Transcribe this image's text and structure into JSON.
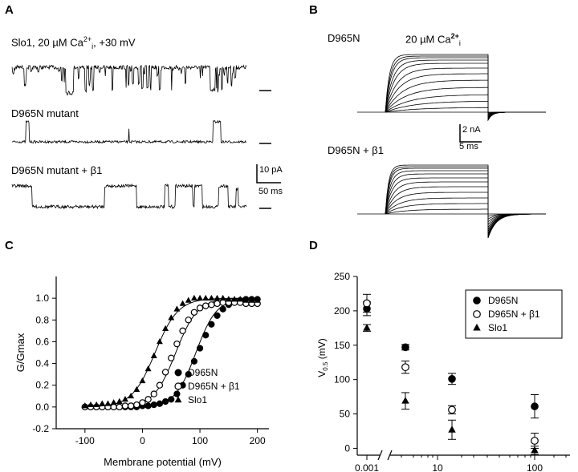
{
  "panels": {
    "A": {
      "letter": "A",
      "trace1_label": "Slo1,  20 µM Ca",
      "trace1_sup": "2+",
      "trace1_sub": "i",
      "trace1_suffix": ", +30 mV",
      "trace2_label": "D965N mutant",
      "trace3_label": "D965N mutant + β1",
      "scale_current": "10 pA",
      "scale_time": "50 ms"
    },
    "B": {
      "letter": "B",
      "top_label": "D965N",
      "ca_label": "20 µM Ca",
      "ca_sup": "2+",
      "ca_sub": "i",
      "bottom_label": "D965N + β1",
      "scale_current": "2 nA",
      "scale_time": "5 ms"
    }
  },
  "chart_data": [
    {
      "panel": "C",
      "type": "scatter",
      "ylabel": "G/Gmax",
      "xlabel": "Membrane potential (mV)",
      "xlim": [
        -150,
        220
      ],
      "ylim": [
        -0.2,
        1.2
      ],
      "xticks": [
        -100,
        0,
        100,
        200
      ],
      "yticks": [
        -0.2,
        0.0,
        0.2,
        0.4,
        0.6,
        0.8,
        1.0
      ],
      "legend_position": "lower-right",
      "series": [
        {
          "name": "D965N",
          "marker": "filled-circle",
          "v_half": 93,
          "slope": 18,
          "x": [
            -100,
            -90,
            -80,
            -70,
            -60,
            -50,
            -40,
            -30,
            -20,
            -10,
            0,
            10,
            20,
            30,
            40,
            50,
            60,
            70,
            80,
            90,
            100,
            110,
            120,
            130,
            140,
            150,
            160,
            170,
            180,
            190,
            200
          ],
          "y": [
            0.0,
            0.0,
            0.0,
            0.0,
            0.0,
            0.0,
            0.0,
            0.0,
            0.0,
            0.0,
            0.01,
            0.01,
            0.02,
            0.03,
            0.05,
            0.07,
            0.12,
            0.2,
            0.3,
            0.42,
            0.54,
            0.66,
            0.76,
            0.84,
            0.9,
            0.94,
            0.97,
            0.98,
            0.99,
            0.99,
            0.99
          ]
        },
        {
          "name": "D965N + β1",
          "marker": "open-circle",
          "v_half": 58,
          "slope": 19,
          "x": [
            -100,
            -90,
            -80,
            -70,
            -60,
            -50,
            -40,
            -30,
            -20,
            -10,
            0,
            10,
            20,
            30,
            40,
            50,
            60,
            70,
            80,
            90,
            100,
            110,
            120,
            130,
            140,
            150,
            160,
            170,
            180,
            190,
            200
          ],
          "y": [
            0.0,
            0.0,
            0.0,
            0.0,
            0.0,
            0.0,
            0.0,
            0.01,
            0.01,
            0.02,
            0.04,
            0.07,
            0.12,
            0.2,
            0.32,
            0.45,
            0.58,
            0.7,
            0.8,
            0.87,
            0.91,
            0.93,
            0.94,
            0.95,
            0.96,
            0.96,
            0.96,
            0.96,
            0.95,
            0.95,
            0.95
          ]
        },
        {
          "name": "Slo1",
          "marker": "filled-triangle",
          "v_half": 22,
          "slope": 20,
          "x": [
            -100,
            -90,
            -80,
            -70,
            -60,
            -50,
            -40,
            -30,
            -20,
            -10,
            0,
            10,
            20,
            30,
            40,
            50,
            60,
            70,
            80,
            90,
            100,
            110,
            120,
            130,
            140,
            150,
            160,
            170,
            180,
            190,
            200
          ],
          "y": [
            0.01,
            0.02,
            0.02,
            0.03,
            0.03,
            0.04,
            0.05,
            0.07,
            0.1,
            0.16,
            0.24,
            0.35,
            0.47,
            0.6,
            0.72,
            0.82,
            0.9,
            0.95,
            0.98,
            1.0,
            1.0,
            1.0,
            1.0,
            1.0,
            1.0,
            0.99,
            0.99,
            0.99,
            0.98,
            0.98,
            0.98
          ]
        }
      ]
    },
    {
      "panel": "D",
      "type": "scatter",
      "ylabel": "V0.5 (mV)",
      "xlabel": "Ca2+i (µM)",
      "xlim_log": [
        0.0001,
        300
      ],
      "ylim": [
        -10,
        250
      ],
      "xticks": [
        "0.001",
        "10",
        "100"
      ],
      "yticks": [
        0,
        50,
        100,
        150,
        200,
        250
      ],
      "legend_position": "top-right",
      "x": [
        "0.001",
        "4",
        "20",
        "100"
      ],
      "series": [
        {
          "name": "D965N",
          "marker": "filled-circle",
          "values": [
            203,
            147,
            101,
            61
          ],
          "errors": [
            10,
            4,
            8,
            17
          ]
        },
        {
          "name": "D965N + β1",
          "marker": "open-circle",
          "values": [
            211,
            118,
            56,
            11
          ],
          "errors": [
            13,
            9,
            6,
            11
          ]
        },
        {
          "name": "Slo1",
          "marker": "filled-triangle",
          "values": [
            175,
            69,
            27,
            -3
          ],
          "errors": [
            5,
            12,
            14,
            6
          ]
        }
      ]
    }
  ]
}
